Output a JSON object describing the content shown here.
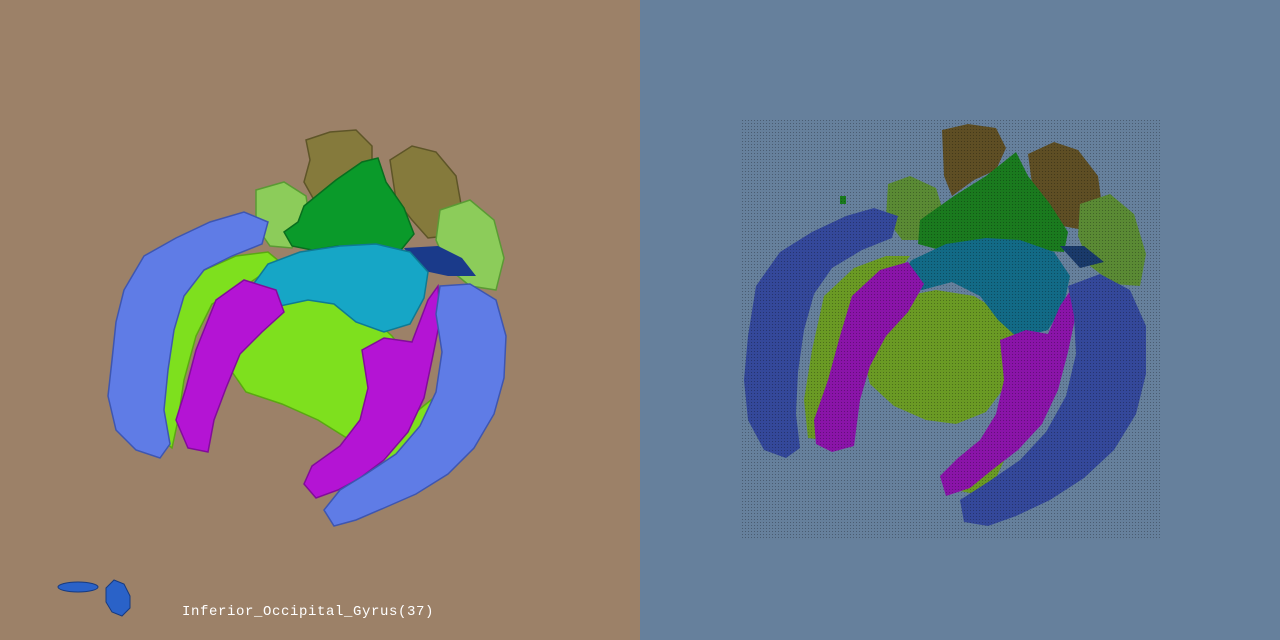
{
  "left_view": {
    "caption": "Inferior_Occipital_Gyrus(37)",
    "background_color": "#9c8168"
  },
  "right_view": {
    "background_color": "#66809c"
  },
  "region_colors": {
    "blue_lateral": "#5f7ce6",
    "lime": "#7ee01e",
    "magenta": "#b414d4",
    "cyan": "#16a6c6",
    "green": "#0a9a2a",
    "olive": "#857a3c",
    "light_green": "#8ccc5a",
    "navy_dark": "#1a3a8a",
    "blue_marker": "#2a62c8",
    "right_blue": "#34489a",
    "right_lime": "#6a9a24",
    "right_magenta": "#8a14a8",
    "right_cyan": "#126a86",
    "right_green": "#1a7a1e",
    "right_olive": "#5e4e24",
    "right_light_green": "#5a8a34"
  }
}
